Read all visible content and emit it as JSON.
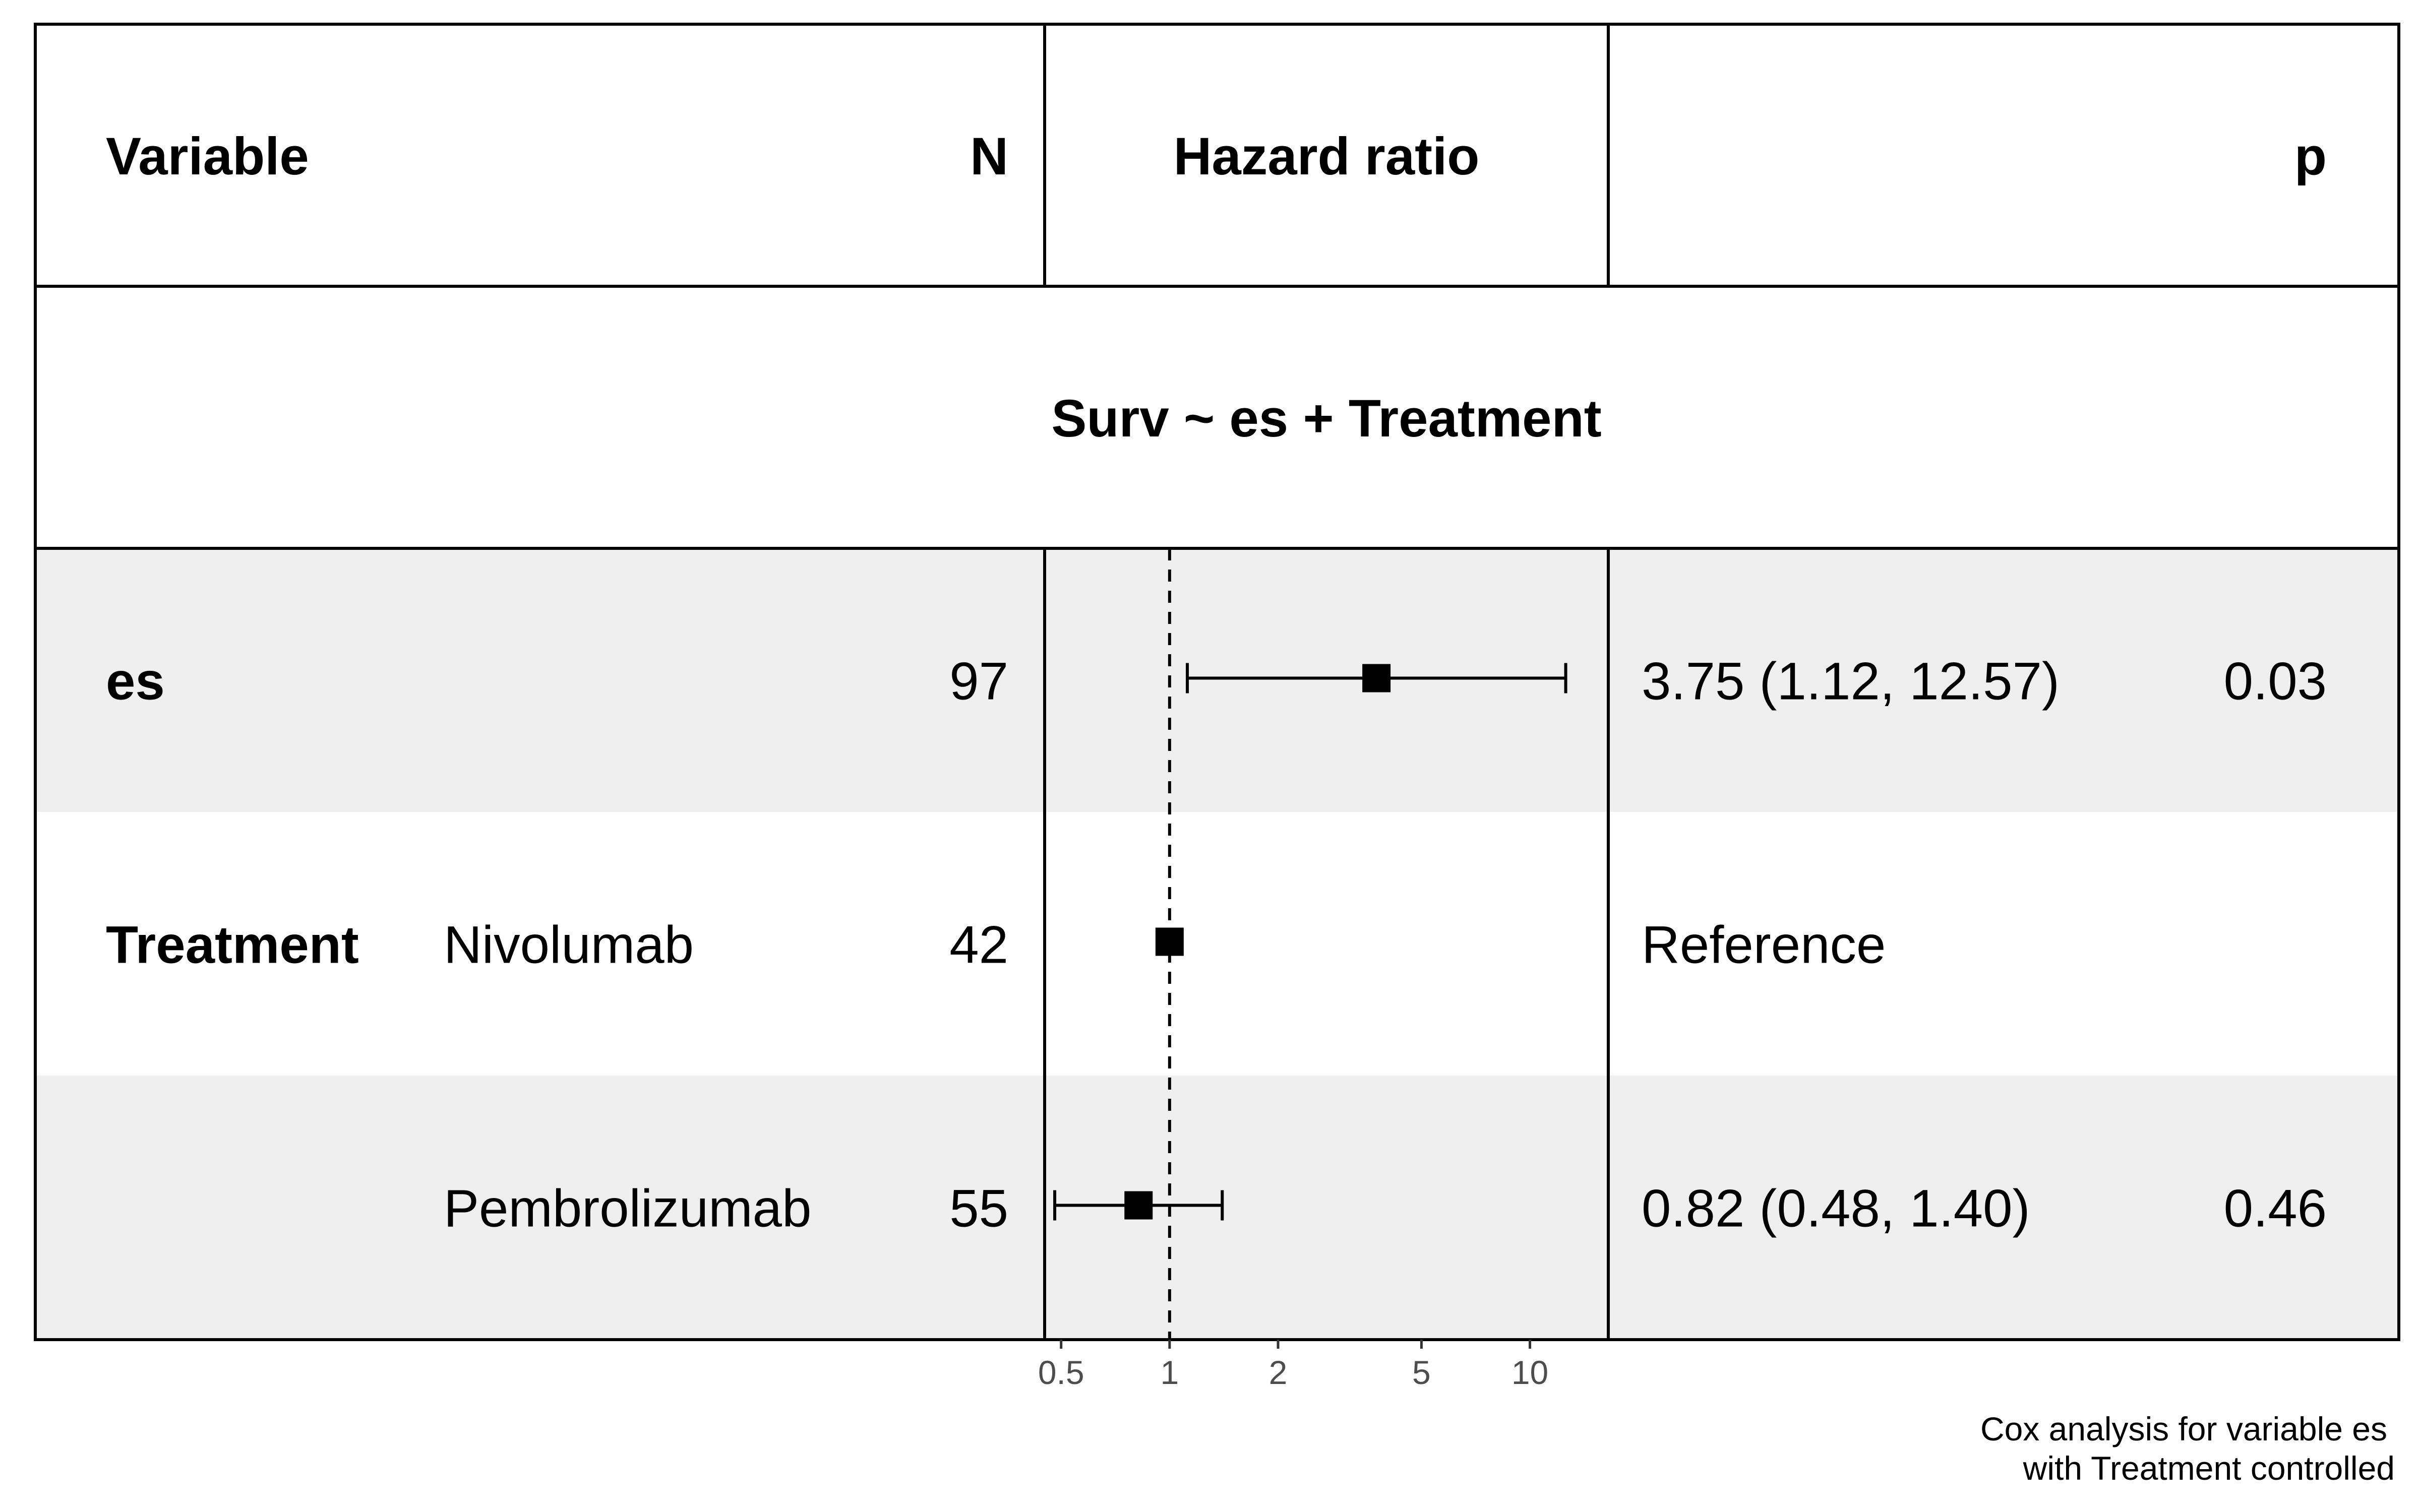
{
  "chart_data": {
    "type": "forest",
    "model_label": "Surv ~ es + Treatment",
    "columns": {
      "variable": "Variable",
      "n": "N",
      "hazard_ratio": "Hazard ratio",
      "p": "p"
    },
    "rows": [
      {
        "variable": "es",
        "level": "",
        "n": "97",
        "estimate_text": "3.75 (1.12, 12.57)",
        "p": "0.03",
        "hr": 3.75,
        "lower": 1.12,
        "upper": 12.57,
        "reference": false
      },
      {
        "variable": "Treatment",
        "level": "Nivolumab",
        "n": "42",
        "estimate_text": "Reference",
        "p": "",
        "hr": 1.0,
        "lower": null,
        "upper": null,
        "reference": true
      },
      {
        "variable": "",
        "level": "Pembrolizumab",
        "n": "55",
        "estimate_text": "0.82 (0.48, 1.40)",
        "p": "0.46",
        "hr": 0.82,
        "lower": 0.48,
        "upper": 1.4,
        "reference": false
      }
    ],
    "x_axis": {
      "scale": "log",
      "ticks": [
        0.5,
        1,
        2,
        5,
        10
      ],
      "tick_labels": [
        "0.5",
        "1",
        "2",
        "5",
        "10"
      ],
      "range": [
        0.45,
        16.5
      ],
      "reference_line": 1
    },
    "caption": [
      "Cox analysis for variable es",
      "with Treatment controlled"
    ],
    "colors": {
      "stripe": "#efefef",
      "background": "#ffffff",
      "line": "#000000",
      "tick_text": "#4d4d4d"
    }
  }
}
